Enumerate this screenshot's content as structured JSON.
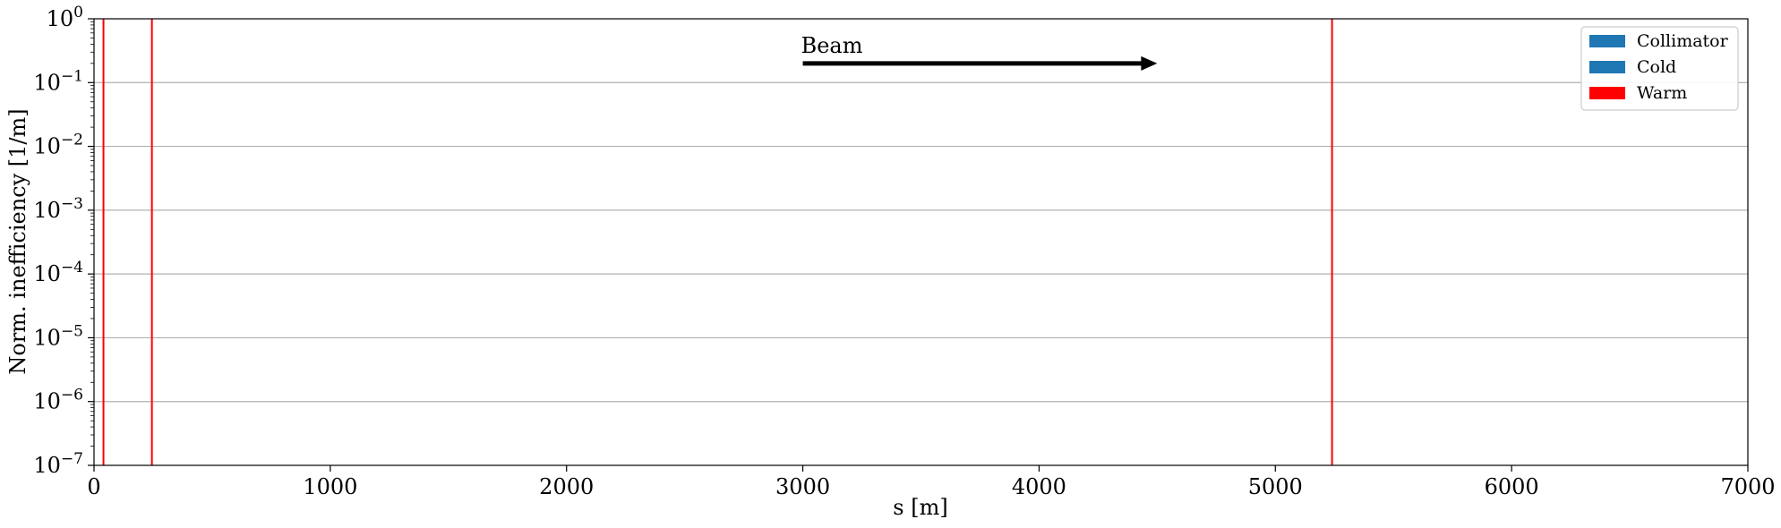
{
  "chart_data": {
    "type": "bar",
    "title": "",
    "xlabel": "s [m]",
    "ylabel": "Norm. inefficiency [1/m]",
    "xlim": [
      0,
      7000
    ],
    "ylim": [
      1e-07,
      1
    ],
    "yscale": "log",
    "grid": "y-major",
    "x_ticks": [
      {
        "value": 0,
        "label": "0"
      },
      {
        "value": 1000,
        "label": "1000"
      },
      {
        "value": 2000,
        "label": "2000"
      },
      {
        "value": 3000,
        "label": "3000"
      },
      {
        "value": 4000,
        "label": "4000"
      },
      {
        "value": 5000,
        "label": "5000"
      },
      {
        "value": 6000,
        "label": "6000"
      },
      {
        "value": 7000,
        "label": "7000"
      }
    ],
    "y_ticks": [
      {
        "value": 1,
        "base": "10",
        "exp": "0"
      },
      {
        "value": 0.1,
        "base": "10",
        "exp": "−1"
      },
      {
        "value": 0.01,
        "base": "10",
        "exp": "−2"
      },
      {
        "value": 0.001,
        "base": "10",
        "exp": "−3"
      },
      {
        "value": 0.0001,
        "base": "10",
        "exp": "−4"
      },
      {
        "value": 1e-05,
        "base": "10",
        "exp": "−5"
      },
      {
        "value": 1e-06,
        "base": "10",
        "exp": "−6"
      },
      {
        "value": 1e-07,
        "base": "10",
        "exp": "−7"
      }
    ],
    "series": [
      {
        "name": "Collimator",
        "color": "#1f77b4",
        "values": []
      },
      {
        "name": "Cold",
        "color": "#1f77b4",
        "values": []
      },
      {
        "name": "Warm",
        "color": "#ff0000",
        "values": [],
        "spans": [
          [
            0,
            40
          ],
          [
            230,
            245
          ],
          [
            5225,
            5240
          ]
        ]
      }
    ],
    "legend": {
      "position": "top-right",
      "entries": [
        {
          "label": "Collimator",
          "color": "#1f77b4"
        },
        {
          "label": "Cold",
          "color": "#1f77b4"
        },
        {
          "label": "Warm",
          "color": "#ff0000"
        }
      ]
    },
    "annotation": {
      "text": "Beam",
      "arrow_from_x": 3000,
      "arrow_to_x": 4500,
      "arrow_y": 0.2
    }
  }
}
